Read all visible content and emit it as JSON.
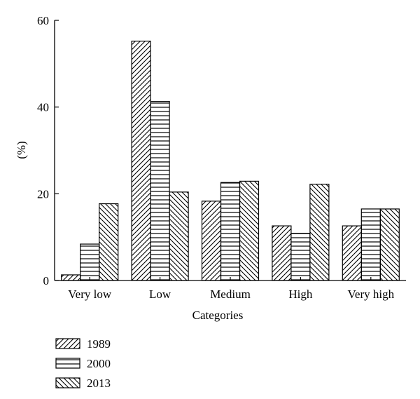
{
  "chart_data": {
    "type": "bar",
    "categories": [
      "Very low",
      "Low",
      "Medium",
      "High",
      "Very high"
    ],
    "series": [
      {
        "name": "1989",
        "values": [
          1.3,
          55.2,
          18.3,
          12.6,
          12.6
        ],
        "pattern": "diagonal-up"
      },
      {
        "name": "2000",
        "values": [
          8.4,
          41.3,
          22.6,
          10.9,
          16.5
        ],
        "pattern": "horizontal"
      },
      {
        "name": "2013",
        "values": [
          17.7,
          20.4,
          22.9,
          22.2,
          16.5
        ],
        "pattern": "diagonal-down"
      }
    ],
    "title": "",
    "xlabel": "Categories",
    "ylabel": "(%)",
    "ylim": [
      0,
      60
    ],
    "yticks": [
      0,
      20,
      40,
      60
    ],
    "grid": false,
    "legend_position": "bottom-left",
    "colors": {
      "stroke": "#000000",
      "fill": "#ffffff"
    }
  }
}
